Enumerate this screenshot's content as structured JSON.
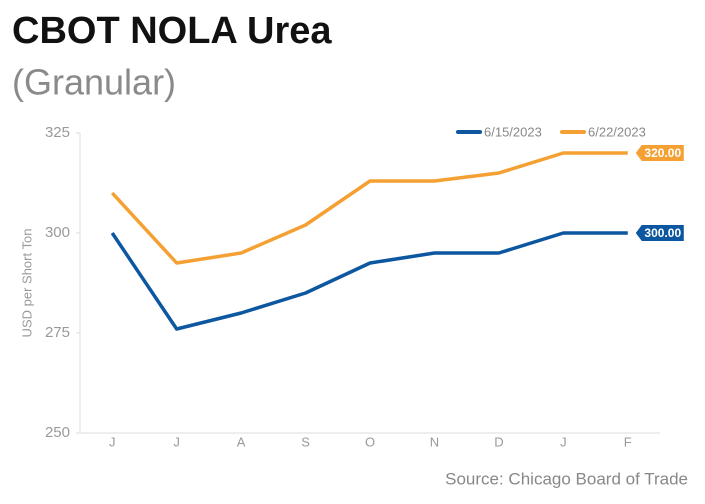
{
  "chart_data": {
    "type": "line",
    "title": "CBOT NOLA Urea",
    "subtitle": "(Granular)",
    "y_label": "USD per Short Ton",
    "source": "Source: Chicago Board of Trade",
    "categories": [
      "J",
      "J",
      "A",
      "S",
      "O",
      "N",
      "D",
      "J",
      "F"
    ],
    "series": [
      {
        "name": "6/15/2023",
        "color": "#0d56a0",
        "values": [
          300,
          276,
          280,
          285,
          292.5,
          295,
          295,
          300,
          300
        ],
        "value_labels": [
          null,
          null,
          null,
          null,
          null,
          null,
          null,
          null,
          "300.00"
        ]
      },
      {
        "name": "6/22/2023",
        "color": "#f5a033",
        "values": [
          310,
          292.5,
          295,
          302,
          313,
          313,
          315,
          320,
          320
        ],
        "value_labels": [
          null,
          null,
          null,
          null,
          null,
          null,
          null,
          null,
          "320.00"
        ]
      }
    ],
    "ylim": [
      250,
      325
    ],
    "yticks": [
      250,
      275,
      300,
      325
    ],
    "grid": false,
    "legend": "top-right"
  }
}
